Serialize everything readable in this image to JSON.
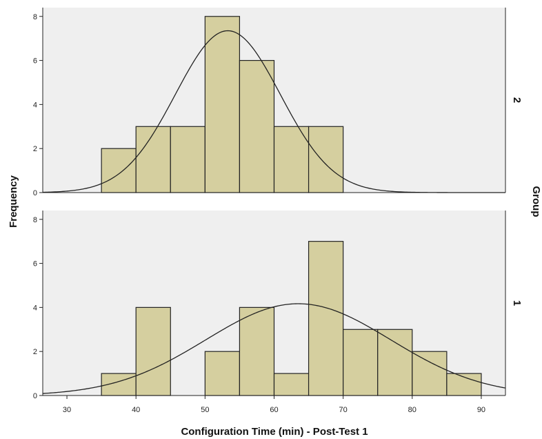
{
  "chart_data": {
    "type": "histogram",
    "xlabel": "Configuration Time (min) - Post-Test 1",
    "ylabel": "Frequency",
    "panel_axis_label": "Group",
    "xlim": [
      26.5,
      93.5
    ],
    "xticks": [
      30,
      40,
      50,
      60,
      70,
      80,
      90
    ],
    "ylim": [
      0,
      8.4
    ],
    "yticks": [
      0,
      2,
      4,
      6,
      8
    ],
    "bin_width": 5,
    "bar_color": "#d5cf9f",
    "bar_edge_color": "#222222",
    "panel_background": "#efefef",
    "panels": [
      {
        "group": "2",
        "bins": [
          {
            "start": 35,
            "end": 40,
            "count": 2
          },
          {
            "start": 40,
            "end": 45,
            "count": 3
          },
          {
            "start": 45,
            "end": 50,
            "count": 3
          },
          {
            "start": 50,
            "end": 55,
            "count": 8
          },
          {
            "start": 55,
            "end": 60,
            "count": 6
          },
          {
            "start": 60,
            "end": 65,
            "count": 3
          },
          {
            "start": 65,
            "end": 70,
            "count": 3
          }
        ],
        "normal_curve": {
          "mean": 53.3,
          "sd": 7.6,
          "n": 28
        }
      },
      {
        "group": "1",
        "bins": [
          {
            "start": 35,
            "end": 40,
            "count": 1
          },
          {
            "start": 40,
            "end": 45,
            "count": 4
          },
          {
            "start": 45,
            "end": 50,
            "count": 0
          },
          {
            "start": 50,
            "end": 55,
            "count": 2
          },
          {
            "start": 55,
            "end": 60,
            "count": 4
          },
          {
            "start": 60,
            "end": 65,
            "count": 1
          },
          {
            "start": 65,
            "end": 70,
            "count": 7
          },
          {
            "start": 70,
            "end": 75,
            "count": 3
          },
          {
            "start": 75,
            "end": 80,
            "count": 3
          },
          {
            "start": 80,
            "end": 85,
            "count": 2
          },
          {
            "start": 85,
            "end": 90,
            "count": 1
          }
        ],
        "normal_curve": {
          "mean": 63.5,
          "sd": 13.4,
          "n": 28
        }
      }
    ]
  }
}
